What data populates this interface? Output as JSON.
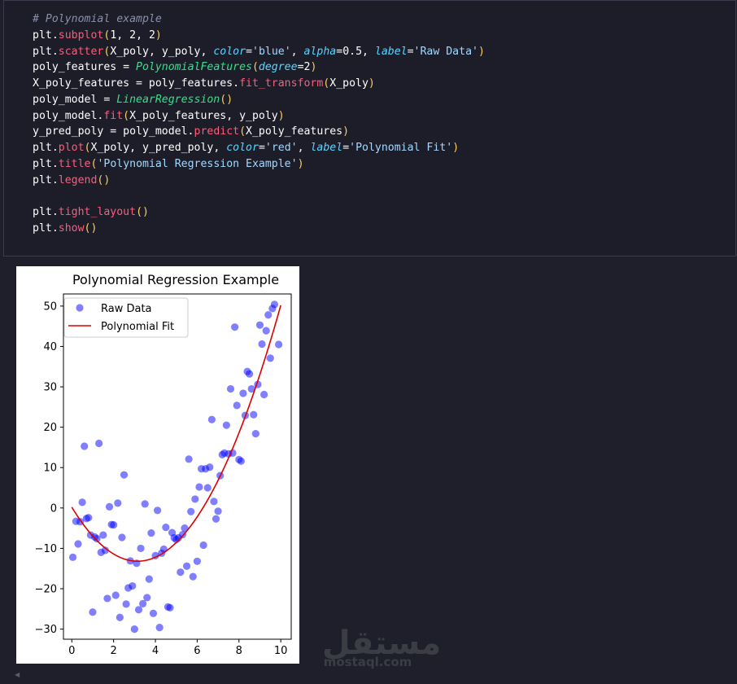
{
  "code_cell": {
    "lines": [
      [
        {
          "t": "# Polynomial example",
          "c": "c"
        }
      ],
      [
        {
          "t": "plt",
          "c": "v"
        },
        {
          "t": ".",
          "c": "v"
        },
        {
          "t": "subplot",
          "c": "f"
        },
        {
          "t": "(",
          "c": "p"
        },
        {
          "t": "1, 2, 2",
          "c": "v"
        },
        {
          "t": ")",
          "c": "p"
        }
      ],
      [
        {
          "t": "plt",
          "c": "v"
        },
        {
          "t": ".",
          "c": "v"
        },
        {
          "t": "scatter",
          "c": "f"
        },
        {
          "t": "(",
          "c": "p"
        },
        {
          "t": "X_poly, y_poly, ",
          "c": "v"
        },
        {
          "t": "color",
          "c": "k"
        },
        {
          "t": "=",
          "c": "v"
        },
        {
          "t": "'blue'",
          "c": "s"
        },
        {
          "t": ", ",
          "c": "v"
        },
        {
          "t": "alpha",
          "c": "k"
        },
        {
          "t": "=0.5, ",
          "c": "v"
        },
        {
          "t": "label",
          "c": "k"
        },
        {
          "t": "=",
          "c": "v"
        },
        {
          "t": "'Raw Data'",
          "c": "s"
        },
        {
          "t": ")",
          "c": "p"
        }
      ],
      [
        {
          "t": "poly_features = ",
          "c": "v"
        },
        {
          "t": "PolynomialFeatures",
          "c": "cls"
        },
        {
          "t": "(",
          "c": "p"
        },
        {
          "t": "degree",
          "c": "k"
        },
        {
          "t": "=2",
          "c": "v"
        },
        {
          "t": ")",
          "c": "p"
        }
      ],
      [
        {
          "t": "X_poly_features = poly_features.",
          "c": "v"
        },
        {
          "t": "fit_transform",
          "c": "f"
        },
        {
          "t": "(",
          "c": "p"
        },
        {
          "t": "X_poly",
          "c": "v"
        },
        {
          "t": ")",
          "c": "p"
        }
      ],
      [
        {
          "t": "poly_model = ",
          "c": "v"
        },
        {
          "t": "LinearRegression",
          "c": "cls"
        },
        {
          "t": "()",
          "c": "p"
        }
      ],
      [
        {
          "t": "poly_model.",
          "c": "v"
        },
        {
          "t": "fit",
          "c": "f"
        },
        {
          "t": "(",
          "c": "p"
        },
        {
          "t": "X_poly_features, y_poly",
          "c": "v"
        },
        {
          "t": ")",
          "c": "p"
        }
      ],
      [
        {
          "t": "y_pred_poly = poly_model.",
          "c": "v"
        },
        {
          "t": "predict",
          "c": "f"
        },
        {
          "t": "(",
          "c": "p"
        },
        {
          "t": "X_poly_features",
          "c": "v"
        },
        {
          "t": ")",
          "c": "p"
        }
      ],
      [
        {
          "t": "plt",
          "c": "v"
        },
        {
          "t": ".",
          "c": "v"
        },
        {
          "t": "plot",
          "c": "f"
        },
        {
          "t": "(",
          "c": "p"
        },
        {
          "t": "X_poly, y_pred_poly, ",
          "c": "v"
        },
        {
          "t": "color",
          "c": "k"
        },
        {
          "t": "=",
          "c": "v"
        },
        {
          "t": "'red'",
          "c": "s"
        },
        {
          "t": ", ",
          "c": "v"
        },
        {
          "t": "label",
          "c": "k"
        },
        {
          "t": "=",
          "c": "v"
        },
        {
          "t": "'Polynomial Fit'",
          "c": "s"
        },
        {
          "t": ")",
          "c": "p"
        }
      ],
      [
        {
          "t": "plt",
          "c": "v"
        },
        {
          "t": ".",
          "c": "v"
        },
        {
          "t": "title",
          "c": "f"
        },
        {
          "t": "(",
          "c": "p"
        },
        {
          "t": "'Polynomial Regression Example'",
          "c": "s"
        },
        {
          "t": ")",
          "c": "p"
        }
      ],
      [
        {
          "t": "plt",
          "c": "v"
        },
        {
          "t": ".",
          "c": "v"
        },
        {
          "t": "legend",
          "c": "f"
        },
        {
          "t": "()",
          "c": "p"
        }
      ],
      [],
      [
        {
          "t": "plt",
          "c": "v"
        },
        {
          "t": ".",
          "c": "v"
        },
        {
          "t": "tight_layout",
          "c": "f"
        },
        {
          "t": "()",
          "c": "p"
        }
      ],
      [
        {
          "t": "plt",
          "c": "v"
        },
        {
          "t": ".",
          "c": "v"
        },
        {
          "t": "show",
          "c": "f"
        },
        {
          "t": "()",
          "c": "p"
        }
      ]
    ]
  },
  "colors": {
    "scatter": "#0000ff",
    "fit_line": "#dd0000",
    "background": "#1e1f2b"
  },
  "chart_data": {
    "type": "scatter",
    "title": "Polynomial Regression Example",
    "xlabel": "",
    "ylabel": "",
    "xlim": [
      -0.4,
      10.5
    ],
    "ylim": [
      -32.5,
      53
    ],
    "xticks": [
      0,
      2,
      4,
      6,
      8,
      10
    ],
    "yticks": [
      -30,
      -20,
      -10,
      0,
      10,
      20,
      30,
      40,
      50
    ],
    "grid": false,
    "legend_position": "top-left",
    "series": [
      {
        "name": "Raw Data",
        "type": "scatter",
        "color": "#0000ff",
        "alpha": 0.5,
        "points": [
          [
            0.05,
            -12.2
          ],
          [
            0.2,
            -3.3
          ],
          [
            0.3,
            -8.9
          ],
          [
            0.4,
            -3.4
          ],
          [
            0.5,
            1.4
          ],
          [
            0.6,
            15.3
          ],
          [
            0.7,
            -2.6
          ],
          [
            0.8,
            -2.4
          ],
          [
            0.9,
            -6.7
          ],
          [
            1.0,
            -25.8
          ],
          [
            1.1,
            -7.2
          ],
          [
            1.2,
            -7.6
          ],
          [
            1.3,
            16.0
          ],
          [
            1.4,
            -11.0
          ],
          [
            1.5,
            -6.7
          ],
          [
            1.6,
            -10.5
          ],
          [
            1.7,
            -22.4
          ],
          [
            1.8,
            0.3
          ],
          [
            1.9,
            -4.1
          ],
          [
            2.0,
            -4.2
          ],
          [
            2.1,
            -21.6
          ],
          [
            2.2,
            1.2
          ],
          [
            2.3,
            -27.1
          ],
          [
            2.4,
            -7.3
          ],
          [
            2.5,
            8.2
          ],
          [
            2.6,
            -23.8
          ],
          [
            2.7,
            -19.8
          ],
          [
            2.8,
            -13.1
          ],
          [
            2.9,
            -19.3
          ],
          [
            3.0,
            -30.0
          ],
          [
            3.1,
            -13.7
          ],
          [
            3.2,
            -25.2
          ],
          [
            3.3,
            -10.0
          ],
          [
            3.4,
            -23.7
          ],
          [
            3.5,
            1.0
          ],
          [
            3.6,
            -22.2
          ],
          [
            3.7,
            -17.6
          ],
          [
            3.8,
            -6.2
          ],
          [
            3.9,
            -26.1
          ],
          [
            4.0,
            -11.8
          ],
          [
            4.1,
            -0.6
          ],
          [
            4.2,
            -29.6
          ],
          [
            4.3,
            -11.2
          ],
          [
            4.4,
            -10.2
          ],
          [
            4.5,
            -4.8
          ],
          [
            4.6,
            -24.5
          ],
          [
            4.7,
            -24.7
          ],
          [
            4.8,
            -6.1
          ],
          [
            4.9,
            -7.4
          ],
          [
            5.0,
            -7.8
          ],
          [
            5.1,
            -7.4
          ],
          [
            5.2,
            -15.9
          ],
          [
            5.3,
            -6.6
          ],
          [
            5.4,
            -5.0
          ],
          [
            5.5,
            -14.4
          ],
          [
            5.6,
            12.1
          ],
          [
            5.7,
            -0.9
          ],
          [
            5.8,
            -17.0
          ],
          [
            5.9,
            2.2
          ],
          [
            6.0,
            -13.2
          ],
          [
            6.1,
            5.2
          ],
          [
            6.2,
            9.7
          ],
          [
            6.3,
            -9.2
          ],
          [
            6.4,
            9.7
          ],
          [
            6.5,
            5.0
          ],
          [
            6.6,
            10.1
          ],
          [
            6.7,
            21.9
          ],
          [
            6.8,
            1.6
          ],
          [
            6.9,
            -2.7
          ],
          [
            7.0,
            -0.8
          ],
          [
            7.1,
            8.0
          ],
          [
            7.2,
            13.2
          ],
          [
            7.3,
            13.6
          ],
          [
            7.4,
            20.5
          ],
          [
            7.5,
            13.4
          ],
          [
            7.6,
            29.5
          ],
          [
            7.7,
            13.6
          ],
          [
            7.8,
            44.8
          ],
          [
            7.9,
            25.4
          ],
          [
            8.0,
            12.0
          ],
          [
            8.1,
            11.6
          ],
          [
            8.2,
            28.4
          ],
          [
            8.3,
            22.9
          ],
          [
            8.4,
            33.8
          ],
          [
            8.5,
            33.2
          ],
          [
            8.6,
            29.5
          ],
          [
            8.7,
            23.1
          ],
          [
            8.8,
            18.4
          ],
          [
            8.9,
            30.6
          ],
          [
            9.0,
            45.3
          ],
          [
            9.1,
            40.6
          ],
          [
            9.2,
            28.1
          ],
          [
            9.3,
            43.9
          ],
          [
            9.4,
            47.8
          ],
          [
            9.5,
            37.1
          ],
          [
            9.6,
            49.4
          ],
          [
            9.7,
            50.4
          ],
          [
            9.9,
            40.5
          ]
        ]
      },
      {
        "name": "Polynomial Fit",
        "type": "line",
        "color": "#dd0000",
        "coefficients": [
          0.2,
          -8.5,
          1.35
        ],
        "x_range": [
          0,
          10
        ]
      }
    ]
  },
  "watermark": {
    "arabic": "مستقل",
    "latin": "mostaql.com"
  }
}
